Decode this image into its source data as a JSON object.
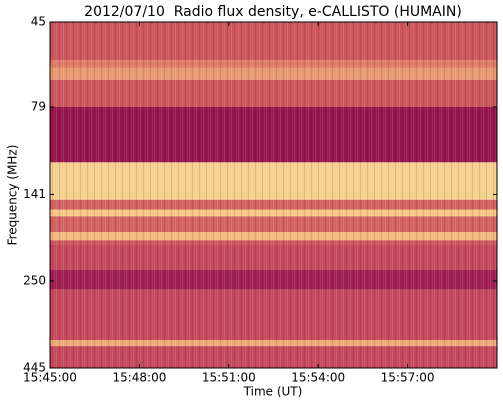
{
  "chart_data": {
    "type": "spectrogram",
    "title": "2012/07/10  Radio flux density, e-CALLISTO (HUMAIN)",
    "xlabel": "Time (UT)",
    "ylabel": "Frequency (MHz)",
    "xlim": [
      "15:45:00",
      "16:00:00"
    ],
    "xticks": [
      "15:45:00",
      "15:48:00",
      "15:51:00",
      "15:54:00",
      "15:57:00"
    ],
    "ylim": [
      45,
      445
    ],
    "yticks": [
      45,
      79,
      141,
      250,
      445
    ],
    "ylog": true,
    "yinverted": true,
    "frequency_bins": [
      45,
      58,
      61,
      66,
      79,
      114,
      146,
      156,
      163,
      181,
      191,
      197,
      232,
      265,
      370,
      385,
      445
    ],
    "intensity": [
      0.35,
      0.5,
      0.6,
      0.35,
      0.05,
      0.8,
      0.4,
      0.75,
      0.4,
      0.7,
      0.35,
      0.3,
      0.1,
      0.3,
      0.65,
      0.3
    ],
    "colormap": [
      "#8c0a4b",
      "#c03c5a",
      "#e07a62",
      "#f6c884",
      "#f8f0b0"
    ]
  }
}
